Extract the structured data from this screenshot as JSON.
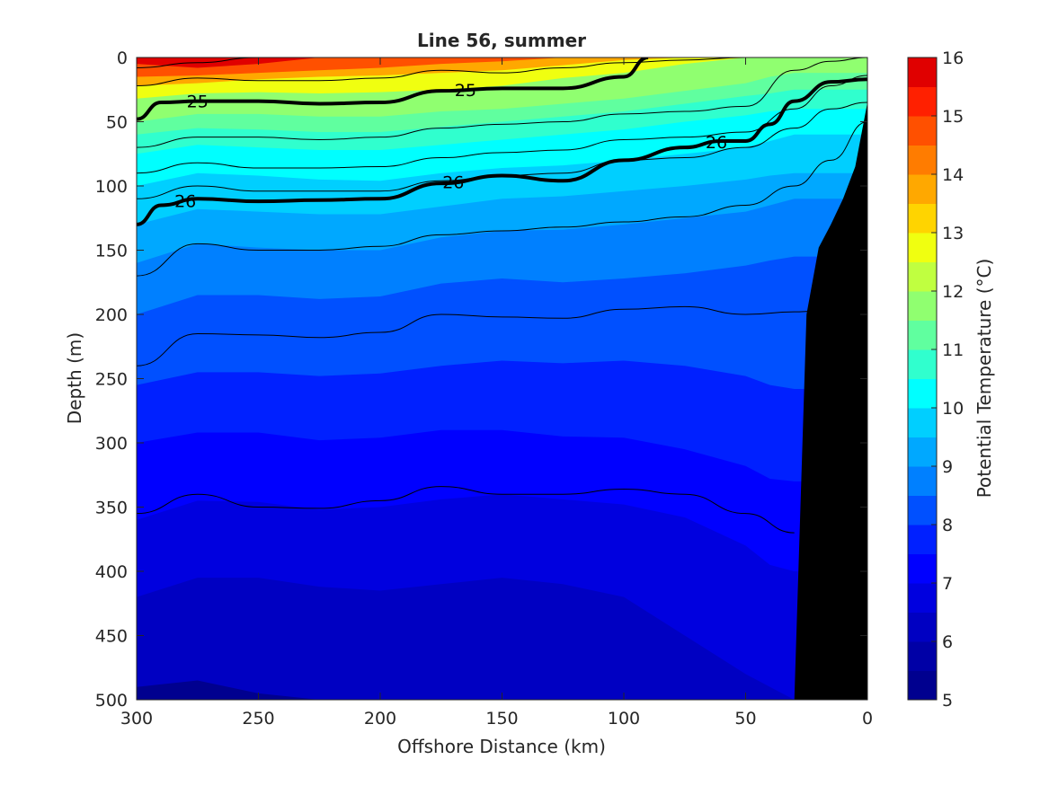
{
  "chart_data": {
    "type": "contour",
    "title": "Line 56, summer",
    "xlabel": "Offshore Distance (km)",
    "ylabel": "Depth (m)",
    "xlim": [
      300,
      0
    ],
    "ylim": [
      500,
      0
    ],
    "x_direction": "reversed",
    "y_direction": "reversed (depth increases downward)",
    "xticks": [
      "300",
      "250",
      "200",
      "150",
      "100",
      "50",
      "0"
    ],
    "yticks": [
      "0",
      "50",
      "100",
      "150",
      "200",
      "250",
      "300",
      "350",
      "400",
      "450",
      "500"
    ],
    "colorbar": {
      "label": "Potential Temperature (°C)",
      "ticks": [
        "5",
        "6",
        "7",
        "8",
        "9",
        "10",
        "11",
        "12",
        "13",
        "14",
        "15",
        "16"
      ],
      "levels": [
        5,
        5.5,
        6,
        6.5,
        7,
        7.5,
        8,
        8.5,
        9,
        9.5,
        10,
        10.5,
        11,
        11.5,
        12,
        12.5,
        13,
        13.5,
        14,
        14.5,
        15,
        15.5,
        16
      ],
      "colors": [
        "#00008f",
        "#0000a6",
        "#0000c2",
        "#0000df",
        "#0000ff",
        "#0020ff",
        "#0050ff",
        "#0080ff",
        "#00a8ff",
        "#00cfff",
        "#00ffff",
        "#30ffce",
        "#60ff9f",
        "#90ff70",
        "#c0ff40",
        "#f0ff10",
        "#ffd400",
        "#ffa800",
        "#ff7c00",
        "#ff5000",
        "#ff2000",
        "#e00000",
        "#b00000"
      ],
      "colormap": "jet"
    },
    "x_grid_km": [
      300,
      275,
      250,
      225,
      200,
      175,
      150,
      125,
      100,
      75,
      50,
      40,
      30
    ],
    "temperature_isotherm_depths_m": {
      "levels": [
        15,
        14,
        13,
        12,
        11,
        10.5,
        10,
        9.5,
        9,
        8.5,
        8,
        7.5,
        7,
        6.5,
        6,
        5.5
      ],
      "depths": [
        [
          5,
          8,
          5,
          0,
          0,
          0,
          0,
          0,
          0,
          0,
          0,
          0,
          0
        ],
        [
          15,
          14,
          12,
          10,
          8,
          5,
          3,
          0,
          0,
          0,
          0,
          0,
          0
        ],
        [
          22,
          20,
          17,
          15,
          14,
          12,
          10,
          6,
          2,
          0,
          0,
          0,
          0
        ],
        [
          32,
          28,
          27,
          28,
          27,
          25,
          22,
          16,
          12,
          5,
          0,
          0,
          0
        ],
        [
          50,
          44,
          44,
          46,
          46,
          42,
          40,
          36,
          32,
          26,
          20,
          15,
          12
        ],
        [
          60,
          55,
          56,
          58,
          58,
          54,
          50,
          46,
          42,
          36,
          30,
          28,
          25
        ],
        [
          75,
          68,
          70,
          72,
          72,
          68,
          64,
          60,
          56,
          50,
          45,
          42,
          40
        ],
        [
          100,
          90,
          92,
          95,
          96,
          90,
          86,
          84,
          80,
          75,
          70,
          65,
          60
        ],
        [
          130,
          118,
          120,
          122,
          122,
          116,
          110,
          108,
          104,
          100,
          95,
          92,
          90
        ],
        [
          160,
          145,
          148,
          150,
          150,
          140,
          135,
          134,
          130,
          125,
          120,
          115,
          110
        ],
        [
          200,
          185,
          185,
          188,
          186,
          176,
          172,
          175,
          172,
          168,
          162,
          158,
          155
        ],
        [
          255,
          245,
          245,
          248,
          246,
          240,
          236,
          238,
          236,
          240,
          248,
          255,
          258
        ],
        [
          300,
          292,
          292,
          298,
          296,
          290,
          290,
          295,
          296,
          305,
          318,
          328,
          330
        ],
        [
          360,
          345,
          346,
          352,
          350,
          344,
          340,
          344,
          348,
          358,
          380,
          395,
          400
        ],
        [
          420,
          405,
          405,
          412,
          415,
          410,
          405,
          410,
          420,
          450,
          480,
          490,
          500
        ],
        [
          490,
          485,
          495,
          500,
          500,
          500,
          500,
          500,
          500,
          500,
          500,
          500,
          500
        ]
      ]
    },
    "density_contours": [
      {
        "label": "25",
        "x": [
          300,
          290,
          275,
          250,
          225,
          200,
          175,
          150,
          125,
          100,
          90
        ],
        "depth": [
          48,
          35,
          34,
          34,
          36,
          35,
          26,
          24,
          24,
          15,
          0
        ]
      },
      {
        "label": "26",
        "x": [
          300,
          290,
          275,
          250,
          225,
          200,
          175,
          150,
          125,
          100,
          75,
          60,
          50,
          40,
          30,
          15,
          0
        ],
        "depth": [
          130,
          115,
          110,
          112,
          111,
          110,
          98,
          92,
          96,
          80,
          70,
          65,
          65,
          52,
          34,
          19,
          17
        ]
      }
    ],
    "thin_contours_depths": [
      {
        "x": [
          300,
          275,
          250,
          225,
          200,
          175,
          150,
          125,
          100,
          75,
          50,
          30,
          15,
          0
        ],
        "depth": [
          8,
          4,
          0,
          0,
          0,
          0,
          0,
          0,
          0,
          0,
          0,
          0,
          0,
          0
        ]
      },
      {
        "x": [
          300,
          275,
          250,
          225,
          200,
          175,
          150,
          125,
          100,
          75,
          50,
          30,
          15,
          0
        ],
        "depth": [
          22,
          16,
          18,
          18,
          16,
          10,
          12,
          8,
          4,
          2,
          0,
          0,
          0,
          0
        ]
      },
      {
        "x": [
          300,
          275,
          250,
          225,
          200,
          175,
          150,
          125,
          100,
          75,
          50,
          30,
          15,
          0
        ],
        "depth": [
          70,
          62,
          62,
          64,
          62,
          55,
          52,
          50,
          44,
          42,
          38,
          10,
          3,
          0
        ]
      },
      {
        "x": [
          300,
          275,
          250,
          225,
          200,
          175,
          150,
          125,
          100,
          75,
          50,
          30,
          15,
          0
        ],
        "depth": [
          90,
          82,
          86,
          86,
          85,
          78,
          74,
          72,
          64,
          62,
          58,
          40,
          22,
          14
        ]
      },
      {
        "x": [
          300,
          275,
          250,
          225,
          200,
          175,
          150,
          125,
          100,
          75,
          50,
          30,
          15,
          0
        ],
        "depth": [
          110,
          100,
          104,
          104,
          104,
          96,
          92,
          90,
          80,
          78,
          70,
          55,
          40,
          35
        ]
      },
      {
        "x": [
          300,
          275,
          250,
          225,
          200,
          175,
          150,
          125,
          100,
          75,
          50,
          30,
          15,
          0
        ],
        "depth": [
          170,
          145,
          150,
          150,
          147,
          138,
          135,
          132,
          128,
          124,
          115,
          100,
          80,
          50
        ]
      },
      {
        "x": [
          300,
          275,
          250,
          225,
          200,
          175,
          150,
          125,
          100,
          75,
          50,
          30,
          15,
          0
        ],
        "depth": [
          240,
          215,
          216,
          218,
          214,
          200,
          202,
          203,
          196,
          194,
          200,
          198,
          197,
          197
        ]
      },
      {
        "x": [
          300,
          275,
          250,
          225,
          200,
          175,
          150,
          125,
          100,
          75,
          50,
          30
        ],
        "depth": [
          355,
          340,
          350,
          351,
          345,
          334,
          340,
          340,
          336,
          340,
          355,
          370
        ]
      }
    ],
    "bottom_mask": {
      "x": [
        30,
        25,
        20,
        15,
        10,
        5,
        0
      ],
      "depth": [
        500,
        200,
        148,
        130,
        110,
        85,
        35
      ],
      "color": "#000000"
    }
  }
}
